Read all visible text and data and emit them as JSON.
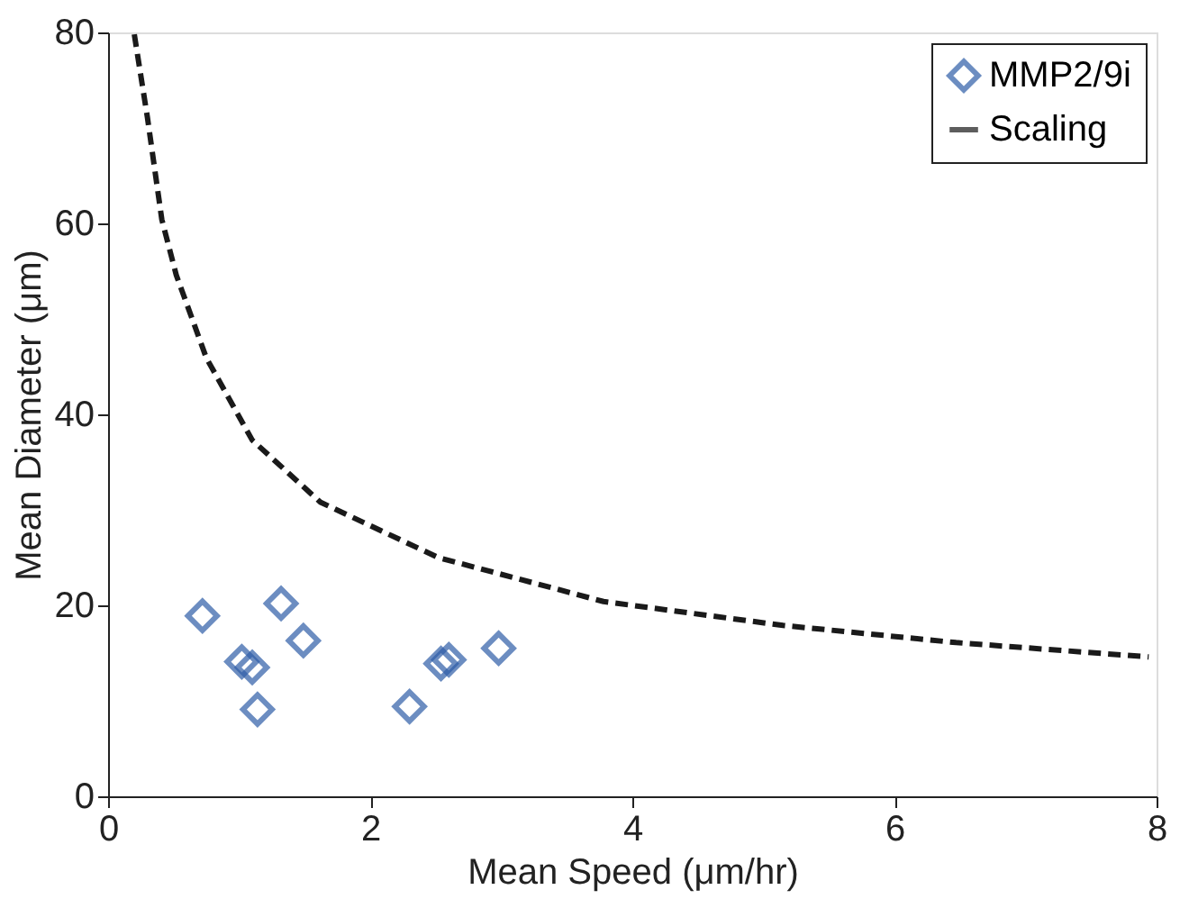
{
  "chart_data": {
    "type": "scatter",
    "xlabel": "Mean Speed (μm/hr)",
    "ylabel": "Mean Diameter (μm)",
    "xlim": [
      0,
      8
    ],
    "xticks": [
      0,
      2,
      4,
      6,
      8
    ],
    "ylim": [
      0,
      80
    ],
    "yticks": [
      0,
      20,
      40,
      60,
      80
    ],
    "grid": false,
    "legend": "top right",
    "series": [
      {
        "name": "MMP2/9i",
        "marker": "diamond",
        "color": "#2f5ea8",
        "x": [
          0.72,
          1.32,
          1.49,
          1.02,
          1.1,
          1.14,
          2.3,
          2.54,
          2.6,
          2.98
        ],
        "values": [
          18.9,
          20.2,
          16.3,
          14.1,
          13.5,
          9.1,
          9.4,
          13.9,
          14.3,
          15.5
        ]
      },
      {
        "name": "Scaling",
        "type": "line",
        "line_style": "dashed",
        "color": "#1a1a1a",
        "x": [
          0.2,
          0.3,
          0.41,
          0.52,
          0.75,
          1.1,
          1.62,
          2.52,
          3.78,
          5.15,
          6.47,
          7.94
        ],
        "values": [
          79.8,
          71.1,
          60.4,
          54.6,
          45.9,
          37.3,
          30.8,
          25.0,
          20.4,
          17.9,
          16.1,
          14.6
        ]
      }
    ]
  }
}
